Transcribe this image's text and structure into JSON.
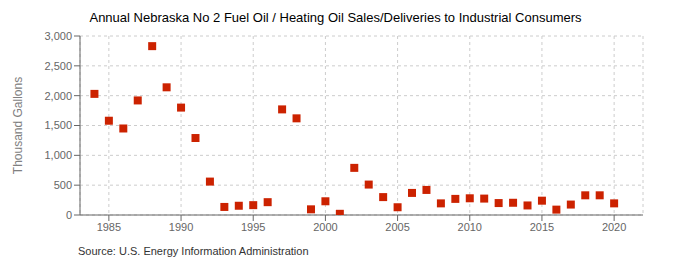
{
  "chart_data": {
    "type": "scatter",
    "title": "Annual Nebraska No 2 Fuel Oil / Heating Oil Sales/Deliveries to Industrial Consumers",
    "y_label": "Thousand Gallons",
    "annotations": [
      "Source: U.S. Energy Information Administration"
    ],
    "color": "#cc2200",
    "marker": "square",
    "x": [
      1984,
      1985,
      1986,
      1987,
      1988,
      1989,
      1990,
      1991,
      1992,
      1993,
      1994,
      1995,
      1996,
      1997,
      1998,
      1999,
      2000,
      2001,
      2002,
      2003,
      2004,
      2005,
      2006,
      2007,
      2008,
      2009,
      2010,
      2011,
      2012,
      2013,
      2014,
      2015,
      2016,
      2017,
      2018,
      2019,
      2020
    ],
    "values": [
      2030,
      1580,
      1450,
      1920,
      2830,
      2140,
      1800,
      1290,
      560,
      135,
      155,
      165,
      215,
      1770,
      1620,
      95,
      230,
      20,
      790,
      510,
      300,
      130,
      370,
      420,
      195,
      270,
      280,
      275,
      200,
      205,
      160,
      240,
      90,
      175,
      330,
      330,
      195
    ],
    "xlim": [
      1983,
      2022
    ],
    "xticks": [
      1985,
      1990,
      1995,
      2000,
      2005,
      2010,
      2015,
      2020
    ],
    "ylim": [
      0,
      3000
    ],
    "yticks": [
      0,
      500,
      {
        "value": 1000,
        "label": "1,000"
      },
      {
        "value": 1500,
        "label": "1,500"
      },
      {
        "value": 2000,
        "label": "2,000"
      },
      {
        "value": 2500,
        "label": "2,500"
      },
      {
        "value": 3000,
        "label": "3,000"
      }
    ],
    "grid": true
  }
}
